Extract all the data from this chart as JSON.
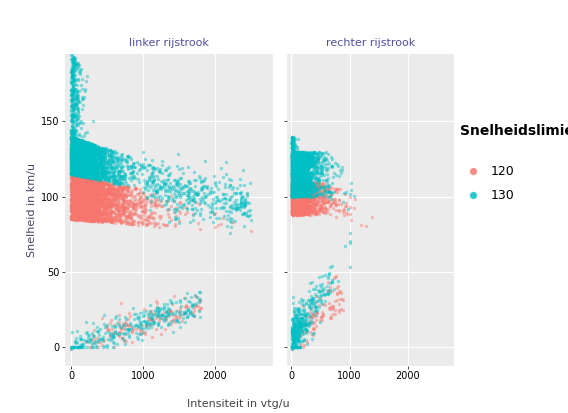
{
  "panel_bg": "#EBEBEB",
  "plot_bg": "#FFFFFF",
  "strip_bg": "#D9D9D9",
  "strip_text_color": "#5050A0",
  "grid_color": "#FFFFFF",
  "color_120": "#F8766D",
  "color_130": "#00BFC4",
  "alpha": 0.45,
  "marker_size": 6,
  "marker_size_legend": 6,
  "xlabel": "Intensiteit in vtg/u",
  "ylabel": "Snelheid in km/u",
  "legend_title": "Snelheidslimiet",
  "legend_labels": [
    "120",
    "130"
  ],
  "facet_labels": [
    "linker rijstrook",
    "rechter rijstrook"
  ],
  "xlim": [
    -80,
    2800
  ],
  "ylim": [
    -12,
    195
  ],
  "xticks": [
    0,
    1000,
    2000
  ],
  "yticks": [
    0,
    50,
    100,
    150
  ],
  "axis_fontsize": 8,
  "tick_fontsize": 7,
  "strip_fontsize": 8,
  "legend_fontsize": 9,
  "legend_title_fontsize": 10
}
